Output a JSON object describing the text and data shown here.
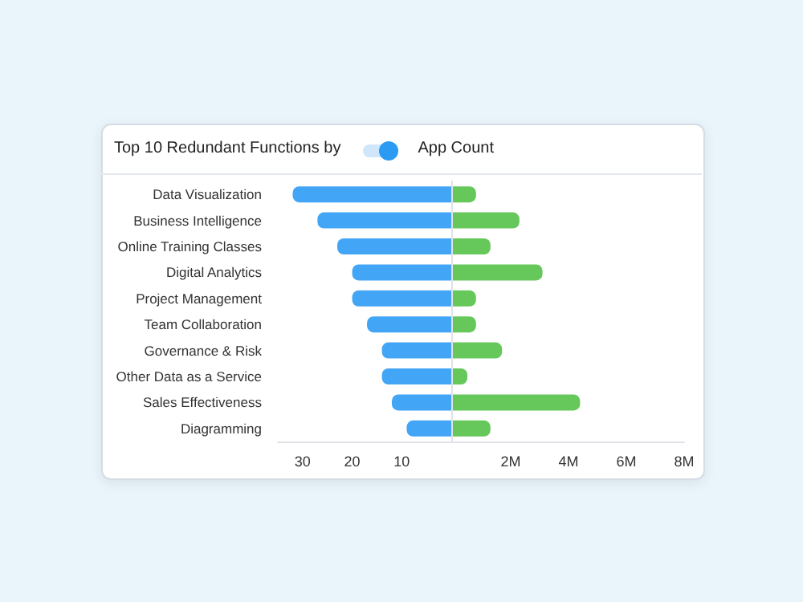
{
  "chart_data": [
    {
      "type": "bar",
      "orientation": "horizontal",
      "title": "Top 10 Redundant Functions by",
      "subtitle": "App Count",
      "categories": [
        "Data Visualization",
        "Business Intelligence",
        "Online Training Classes",
        "Digital Analytics",
        "Project Management",
        "Team Collaboration",
        "Governance & Risk",
        "Other Data as a Service",
        "Sales Effectiveness",
        "Diagramming"
      ],
      "values": [
        32,
        27,
        23,
        20,
        20,
        17,
        14,
        14,
        12,
        9
      ],
      "color": "#42a5f5",
      "xlim": [
        35,
        0
      ],
      "xticks": [
        30,
        20,
        10
      ],
      "grid": false
    },
    {
      "type": "bar",
      "orientation": "horizontal",
      "values": [
        0.8,
        2.3,
        1.3,
        3.1,
        0.8,
        0.8,
        1.7,
        0.5,
        4.4,
        1.3
      ],
      "color": "#66c75a",
      "xlim": [
        0,
        8
      ],
      "xticks": [
        {
          "value": 2,
          "label": "2M"
        },
        {
          "value": 4,
          "label": "4M"
        },
        {
          "value": 6,
          "label": "6M"
        },
        {
          "value": 8,
          "label": "8M"
        }
      ],
      "tick_labels": "x",
      "grid": false
    }
  ]
}
